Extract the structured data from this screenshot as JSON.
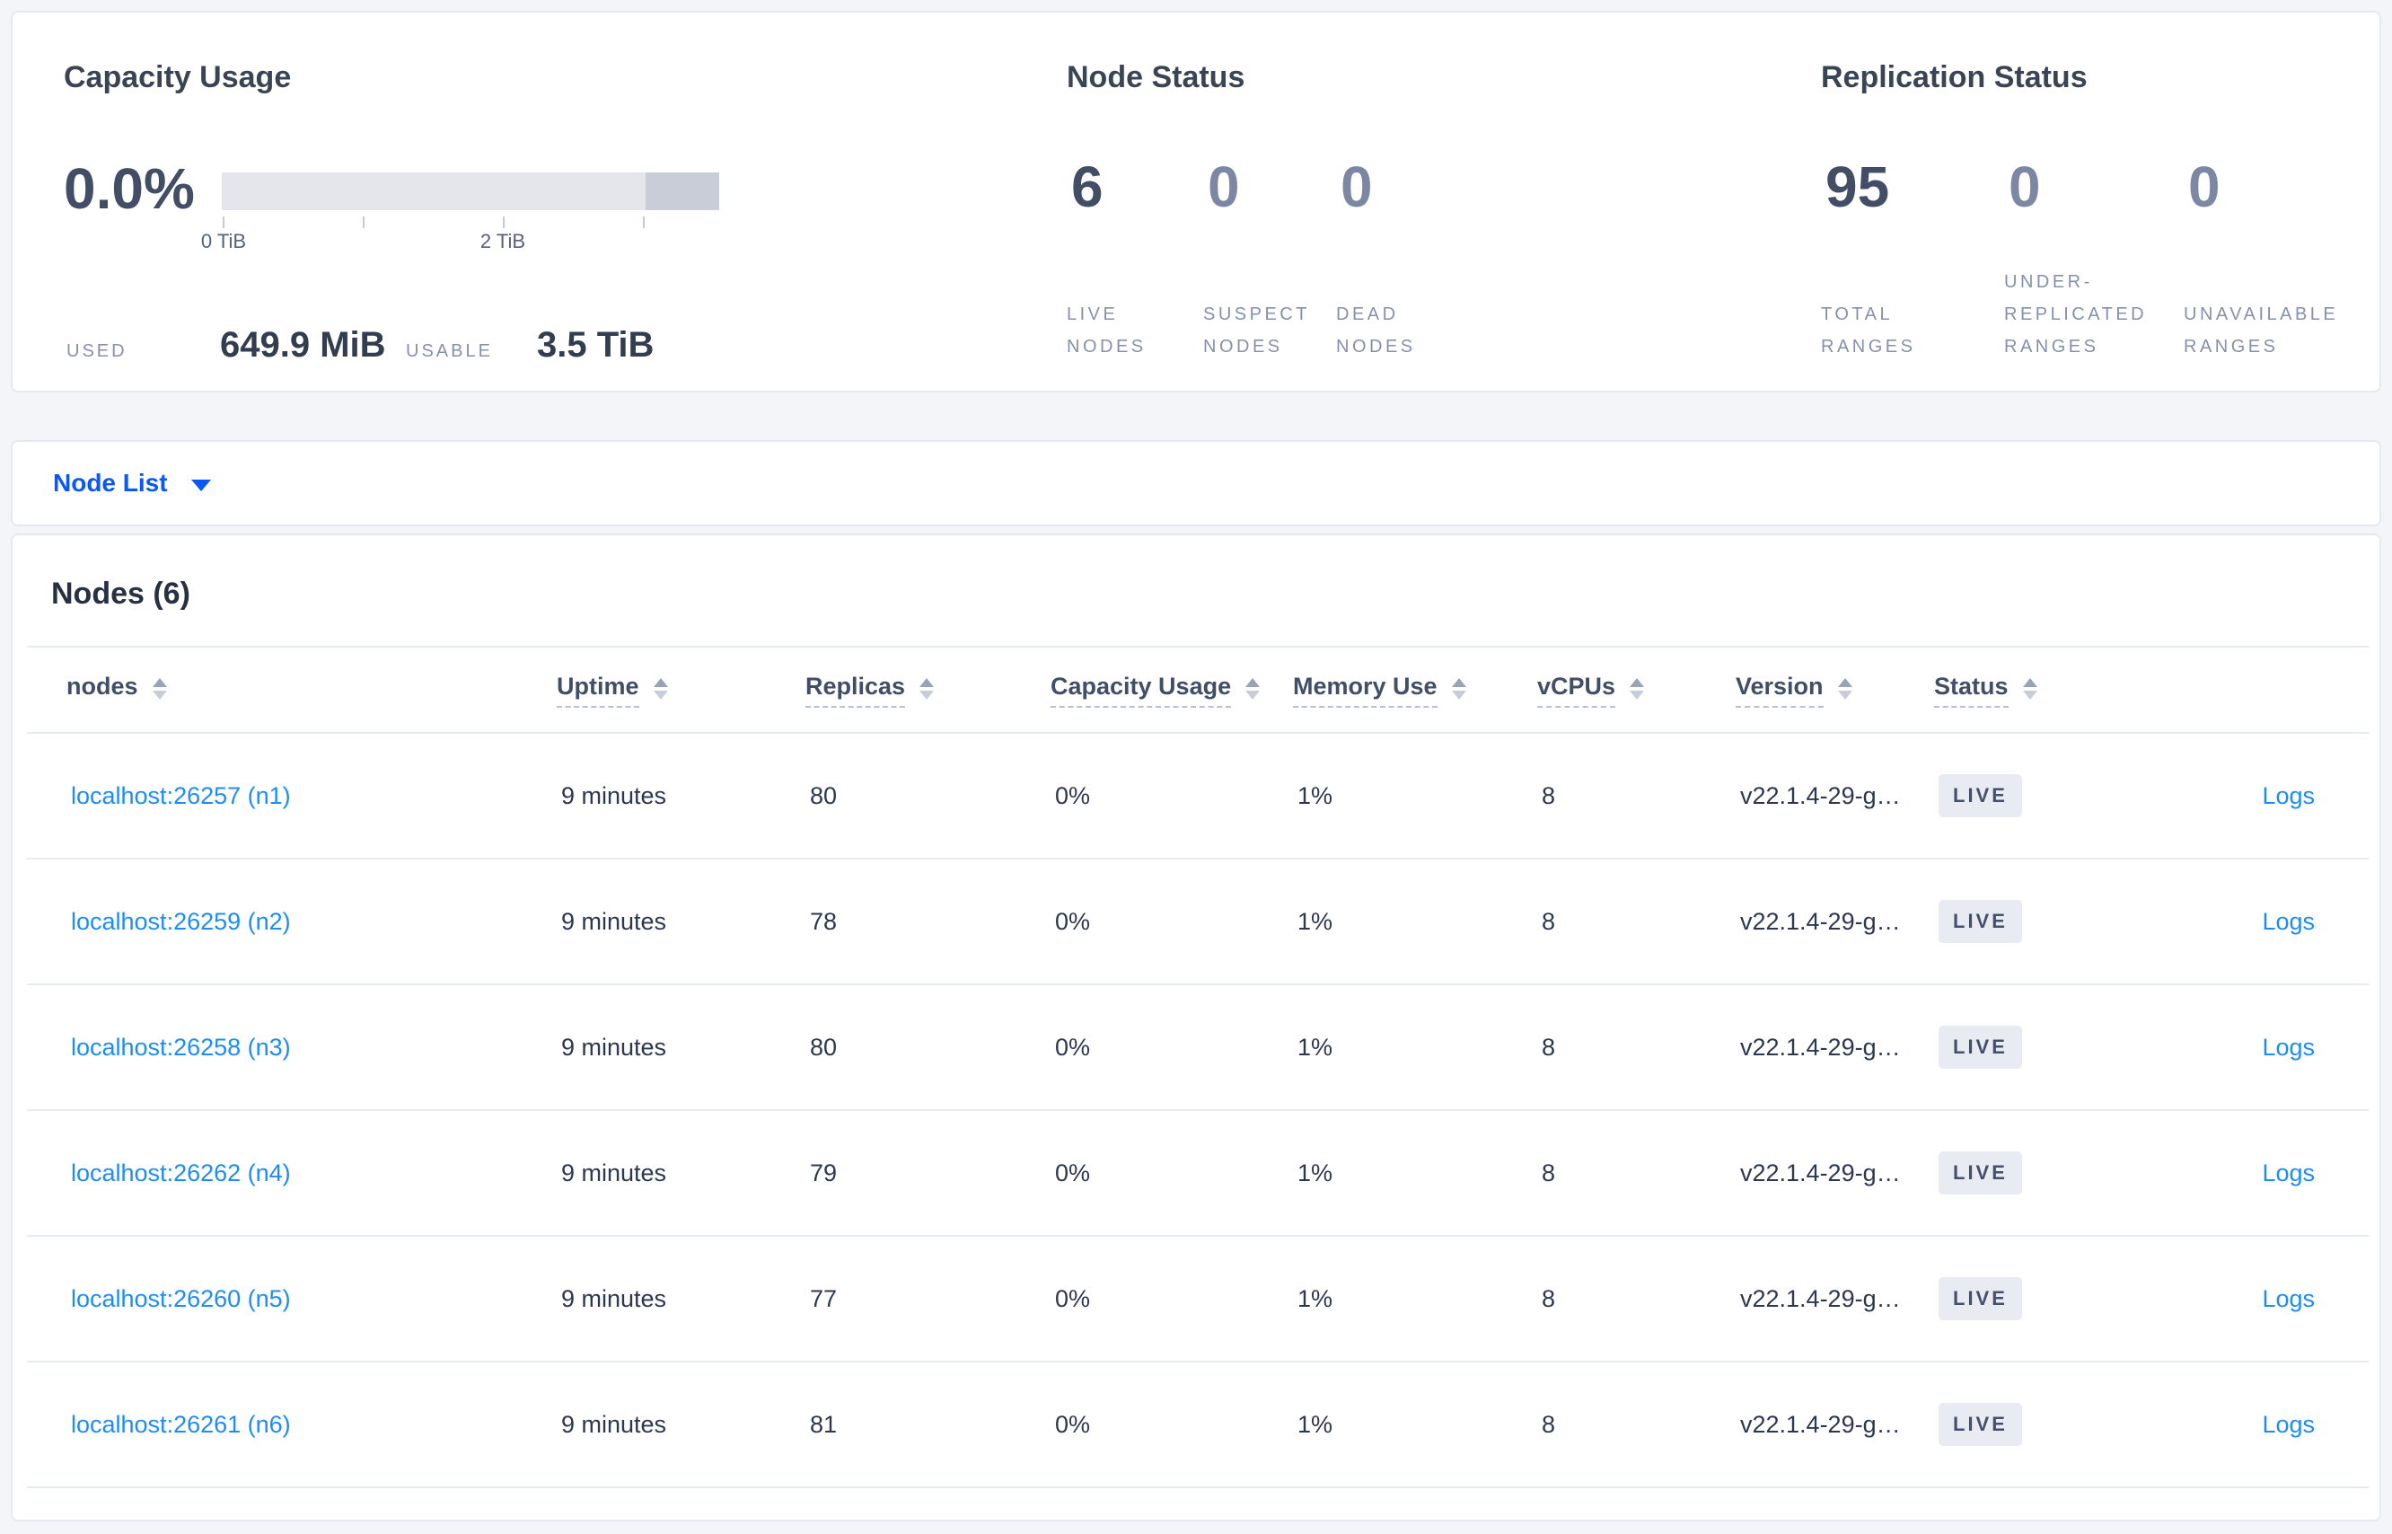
{
  "summary": {
    "capacity": {
      "title": "Capacity Usage",
      "percent": "0.0%",
      "tick_labels": [
        "0 TiB",
        "2 TiB"
      ],
      "used_label": "USED",
      "used_value": "649.9 MiB",
      "usable_label": "USABLE",
      "usable_value": "3.5 TiB"
    },
    "node_status": {
      "title": "Node Status",
      "stats": [
        {
          "value": "6",
          "label": "LIVE\nNODES",
          "emphasized": true
        },
        {
          "value": "0",
          "label": "SUSPECT\nNODES",
          "emphasized": false
        },
        {
          "value": "0",
          "label": "DEAD\nNODES",
          "emphasized": false
        }
      ]
    },
    "replication": {
      "title": "Replication Status",
      "stats": [
        {
          "value": "95",
          "label": "TOTAL\nRANGES",
          "emphasized": true
        },
        {
          "value": "0",
          "label": "UNDER-\nREPLICATED\nRANGES",
          "emphasized": false
        },
        {
          "value": "0",
          "label": "UNAVAILABLE\nRANGES",
          "emphasized": false
        }
      ]
    }
  },
  "nav": {
    "node_list_label": "Node List"
  },
  "table": {
    "title": "Nodes (6)",
    "columns": [
      {
        "key": "node",
        "label": "nodes",
        "sortable": true,
        "underline": false
      },
      {
        "key": "uptime",
        "label": "Uptime",
        "sortable": true,
        "underline": true
      },
      {
        "key": "replicas",
        "label": "Replicas",
        "sortable": true,
        "underline": true
      },
      {
        "key": "capacity",
        "label": "Capacity Usage",
        "sortable": true,
        "underline": true
      },
      {
        "key": "memory",
        "label": "Memory Use",
        "sortable": true,
        "underline": true
      },
      {
        "key": "vcpus",
        "label": "vCPUs",
        "sortable": true,
        "underline": true
      },
      {
        "key": "version",
        "label": "Version",
        "sortable": true,
        "underline": true
      },
      {
        "key": "status",
        "label": "Status",
        "sortable": true,
        "underline": true
      },
      {
        "key": "logs",
        "label": "",
        "sortable": false,
        "underline": false
      }
    ],
    "rows": [
      {
        "node": "localhost:26257 (n1)",
        "uptime": "9 minutes",
        "replicas": "80",
        "capacity": "0%",
        "memory": "1%",
        "vcpus": "8",
        "version": "v22.1.4-29-g…",
        "status": "LIVE",
        "logs": "Logs"
      },
      {
        "node": "localhost:26259 (n2)",
        "uptime": "9 minutes",
        "replicas": "78",
        "capacity": "0%",
        "memory": "1%",
        "vcpus": "8",
        "version": "v22.1.4-29-g…",
        "status": "LIVE",
        "logs": "Logs"
      },
      {
        "node": "localhost:26258 (n3)",
        "uptime": "9 minutes",
        "replicas": "80",
        "capacity": "0%",
        "memory": "1%",
        "vcpus": "8",
        "version": "v22.1.4-29-g…",
        "status": "LIVE",
        "logs": "Logs"
      },
      {
        "node": "localhost:26262 (n4)",
        "uptime": "9 minutes",
        "replicas": "79",
        "capacity": "0%",
        "memory": "1%",
        "vcpus": "8",
        "version": "v22.1.4-29-g…",
        "status": "LIVE",
        "logs": "Logs"
      },
      {
        "node": "localhost:26260 (n5)",
        "uptime": "9 minutes",
        "replicas": "77",
        "capacity": "0%",
        "memory": "1%",
        "vcpus": "8",
        "version": "v22.1.4-29-g…",
        "status": "LIVE",
        "logs": "Logs"
      },
      {
        "node": "localhost:26261 (n6)",
        "uptime": "9 minutes",
        "replicas": "81",
        "capacity": "0%",
        "memory": "1%",
        "vcpus": "8",
        "version": "v22.1.4-29-g…",
        "status": "LIVE",
        "logs": "Logs"
      }
    ]
  },
  "colors": {
    "link": "#1e8cf7",
    "nav_link": "#0a57fa",
    "badge_bg": "#e8ecf2",
    "badge_text": "#44506a",
    "bar_light": "#e4e6ec",
    "bar_dark": "#c9cdd7"
  }
}
